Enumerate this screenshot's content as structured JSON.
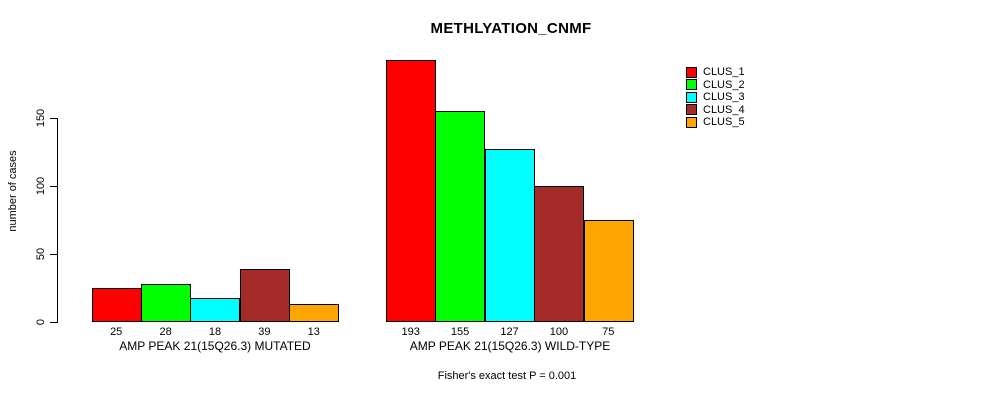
{
  "chart_data": {
    "type": "bar",
    "title": "METHLYATION_CNMF",
    "ylabel": "number of cases",
    "xlabel": "",
    "yticks": [
      0,
      50,
      100,
      150
    ],
    "ylim": [
      0,
      200
    ],
    "grid": false,
    "legend_position": "right",
    "categories": [
      "AMP PEAK 21(15Q26.3) MUTATED",
      "AMP PEAK 21(15Q26.3) WILD-TYPE"
    ],
    "series": [
      {
        "name": "CLUS_1",
        "color": "#ff0000",
        "values": [
          25,
          193
        ]
      },
      {
        "name": "CLUS_2",
        "color": "#00ff00",
        "values": [
          28,
          155
        ]
      },
      {
        "name": "CLUS_3",
        "color": "#00ffff",
        "values": [
          18,
          127
        ]
      },
      {
        "name": "CLUS_4",
        "color": "#a52a2a",
        "values": [
          39,
          100
        ]
      },
      {
        "name": "CLUS_5",
        "color": "#ffa500",
        "values": [
          13,
          75
        ]
      }
    ],
    "bar_value_labels": [
      [
        "25",
        "28",
        "18",
        "39",
        "13"
      ],
      [
        "193",
        "155",
        "127",
        "100",
        "75"
      ]
    ],
    "annotation": "Fisher's exact test P = 0.001"
  }
}
